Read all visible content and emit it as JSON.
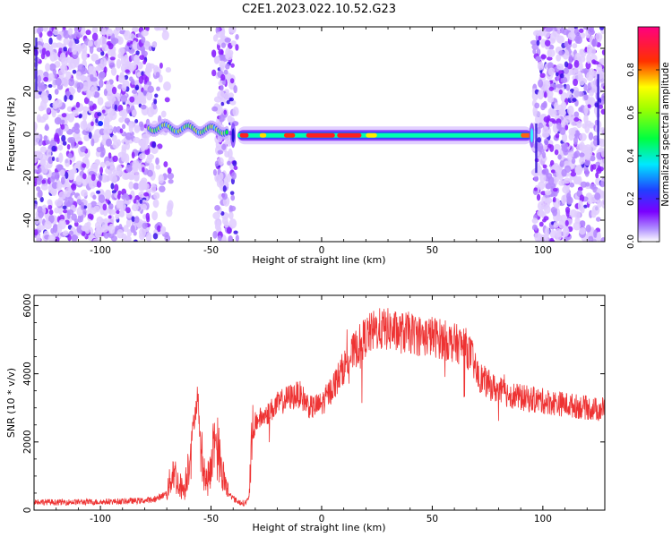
{
  "figure_title": "C2E1.2023.022.10.52.G23",
  "chart_data": [
    {
      "type": "heatmap",
      "title": "",
      "xlabel": "Height of straight line (km)",
      "ylabel": "Frequency (Hz)",
      "xlim": [
        -130,
        128
      ],
      "ylim": [
        -50,
        50
      ],
      "xticks": [
        -100,
        -50,
        0,
        50,
        100
      ],
      "yticks": [
        -40,
        -20,
        0,
        20,
        40
      ],
      "colorbar": {
        "label": "Normalized spectral amplitude",
        "ticks": [
          0.0,
          0.2,
          0.4,
          0.6,
          0.8
        ],
        "colors": [
          "#ffffff",
          "#8800ff",
          "#0044ff",
          "#00ffff",
          "#00ff00",
          "#ffff00",
          "#ff0000",
          "#ff0088"
        ]
      },
      "features": [
        {
          "x_range": [
            -130,
            -78
          ],
          "description_level": 0.25
        },
        {
          "x_range": [
            -78,
            -45
          ],
          "freq_hz": 2.5,
          "level": 0.45
        },
        {
          "x_range": [
            -47,
            -40
          ],
          "level": 0.2
        },
        {
          "x_range": [
            -38,
            95
          ],
          "freq_hz": -0.5,
          "level": 0.75
        },
        {
          "x_range": [
            97,
            128
          ],
          "level": 0.25
        }
      ]
    },
    {
      "type": "line",
      "title": "",
      "xlabel": "Height of straight line (km)",
      "ylabel": "SNR (10 * v/v)",
      "xlim": [
        -130,
        128
      ],
      "ylim": [
        0,
        6300
      ],
      "xticks": [
        -100,
        -50,
        0,
        50,
        100
      ],
      "yticks": [
        0,
        2000,
        4000,
        6000
      ],
      "color": "#ee3333",
      "series": [
        {
          "x": [
            -130,
            -120,
            -110,
            -100,
            -90,
            -80,
            -75,
            -70,
            -67,
            -65,
            -62,
            -60,
            -58,
            -56,
            -55,
            -54,
            -52,
            -50,
            -48,
            -45,
            -42,
            -40,
            -38,
            -35,
            -33,
            -32,
            -30,
            -25,
            -20,
            -15,
            -10,
            -5,
            0,
            5,
            10,
            15,
            20,
            25,
            30,
            35,
            40,
            45,
            50,
            55,
            60,
            65,
            68,
            70,
            75,
            80,
            85,
            90,
            95,
            100,
            105,
            110,
            115,
            120,
            125,
            128
          ],
          "y": [
            250,
            230,
            240,
            240,
            260,
            280,
            320,
            500,
            1200,
            800,
            600,
            1500,
            2500,
            3400,
            2200,
            1500,
            800,
            1200,
            2200,
            1100,
            500,
            350,
            250,
            200,
            300,
            1500,
            2600,
            2800,
            3100,
            3300,
            3400,
            3000,
            3100,
            3600,
            4200,
            4700,
            5100,
            5300,
            5300,
            5200,
            5200,
            5100,
            5100,
            5000,
            4900,
            4800,
            4500,
            4000,
            3700,
            3500,
            3400,
            3300,
            3250,
            3200,
            3150,
            3100,
            3050,
            3000,
            2950,
            3000
          ]
        }
      ]
    }
  ]
}
